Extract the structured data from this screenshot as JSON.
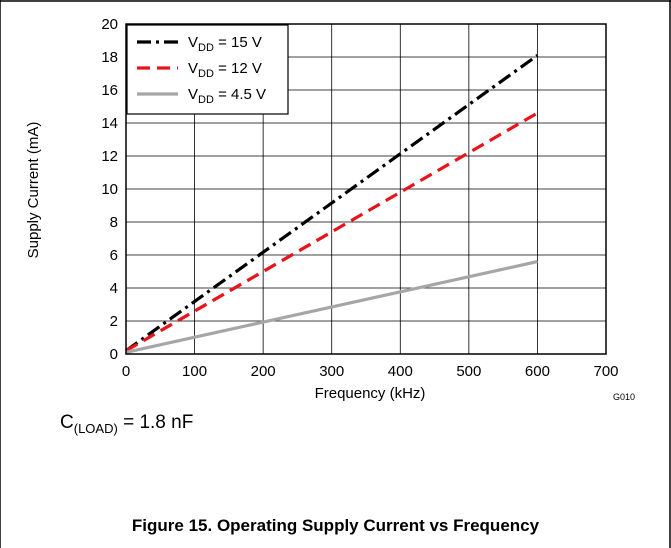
{
  "chart_data": {
    "type": "line",
    "xlabel": "Frequency (kHz)",
    "ylabel": "Supply Current (mA)",
    "xlim": [
      0,
      700
    ],
    "ylim": [
      0,
      20
    ],
    "xticks": [
      0,
      100,
      200,
      300,
      400,
      500,
      600,
      700
    ],
    "yticks": [
      0,
      2,
      4,
      6,
      8,
      10,
      12,
      14,
      16,
      18,
      20
    ],
    "grid": true,
    "legend_position": "top-left",
    "series": [
      {
        "name_main": "V",
        "name_sub": "DD",
        "name_rest": " = 15 V",
        "color": "#000000",
        "dash": "dash-dot",
        "x": [
          0,
          600
        ],
        "y": [
          0.2,
          18.1
        ]
      },
      {
        "name_main": "V",
        "name_sub": "DD",
        "name_rest": " = 12 V",
        "color": "#e8141b",
        "dash": "dashed",
        "x": [
          0,
          600
        ],
        "y": [
          0.2,
          14.6
        ]
      },
      {
        "name_main": "V",
        "name_sub": "DD",
        "name_rest": " = 4.5 V",
        "color": "#a6a6a6",
        "dash": "solid",
        "x": [
          0,
          600
        ],
        "y": [
          0.1,
          5.6
        ]
      }
    ],
    "figure_code": "G010"
  },
  "note": {
    "main": "C",
    "sub": "(LOAD)",
    "rest": " = 1.8 nF"
  },
  "caption": "Figure 15. Operating Supply Current vs Frequency"
}
